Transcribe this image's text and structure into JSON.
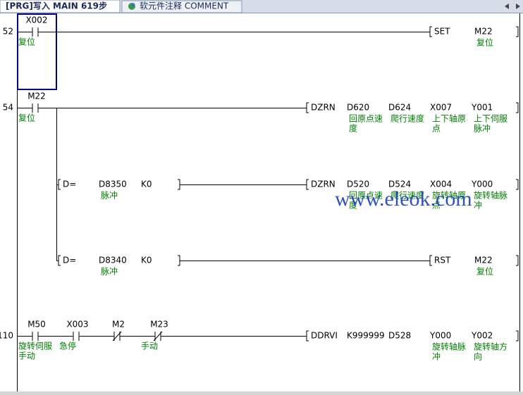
{
  "tabs": [
    {
      "label": "[PRG]写入 MAIN 619步"
    },
    {
      "label": "软元件注释 COMMENT"
    }
  ],
  "watermark": "www.eleok.com",
  "rungs": [
    {
      "step": "52",
      "contacts": [
        {
          "device": "X002",
          "type": "NO",
          "comment": [
            "复位"
          ]
        }
      ],
      "instruction": {
        "operator": "SET",
        "operands": [
          {
            "device": "M22",
            "comment": [
              "复位"
            ]
          }
        ]
      }
    },
    {
      "step": "54",
      "contacts": [
        {
          "device": "M22",
          "type": "NO",
          "comment": [
            "复位"
          ]
        }
      ],
      "instruction": {
        "operator": "DZRN",
        "operands": [
          {
            "device": "D620",
            "comment": [
              "回原点速",
              "度"
            ]
          },
          {
            "device": "D624",
            "comment": [
              "爬行速度"
            ]
          },
          {
            "device": "X007",
            "comment": [
              "上下轴原",
              "点"
            ]
          },
          {
            "device": "Y001",
            "comment": [
              "上下伺服",
              "脉冲"
            ]
          }
        ]
      },
      "branches": [
        {
          "compare": {
            "operator": "D=",
            "operands": [
              {
                "device": "D8350",
                "comment": [
                  "脉冲"
                ]
              },
              {
                "device": "K0"
              }
            ]
          },
          "instruction": {
            "operator": "DZRN",
            "operands": [
              {
                "device": "D520",
                "comment": [
                  "回原点速",
                  "度"
                ]
              },
              {
                "device": "D524",
                "comment": [
                  "爬行速度"
                ]
              },
              {
                "device": "X004",
                "comment": [
                  "旋转轴原",
                  "点"
                ]
              },
              {
                "device": "Y000",
                "comment": [
                  "旋转轴脉",
                  "冲"
                ]
              }
            ]
          }
        },
        {
          "compare": {
            "operator": "D=",
            "operands": [
              {
                "device": "D8340",
                "comment": [
                  "脉冲"
                ]
              },
              {
                "device": "K0"
              }
            ]
          },
          "instruction": {
            "operator": "RST",
            "operands": [
              {
                "device": "M22",
                "comment": [
                  "复位"
                ]
              }
            ]
          }
        }
      ]
    },
    {
      "step": "110",
      "contacts": [
        {
          "device": "M50",
          "type": "NO",
          "comment": [
            "旋转伺服",
            "手动"
          ]
        },
        {
          "device": "X003",
          "type": "NO",
          "comment": [
            "急停"
          ]
        },
        {
          "device": "M2",
          "type": "NC"
        },
        {
          "device": "M23",
          "type": "NC",
          "comment": [
            "手动"
          ]
        }
      ],
      "instruction": {
        "operator": "DDRVI",
        "operands": [
          {
            "device": "K999999"
          },
          {
            "device": "D528"
          },
          {
            "device": "Y000",
            "comment": [
              "旋转轴脉",
              "冲"
            ]
          },
          {
            "device": "Y002",
            "comment": [
              "旋转轴方",
              "向"
            ]
          }
        ]
      }
    }
  ]
}
